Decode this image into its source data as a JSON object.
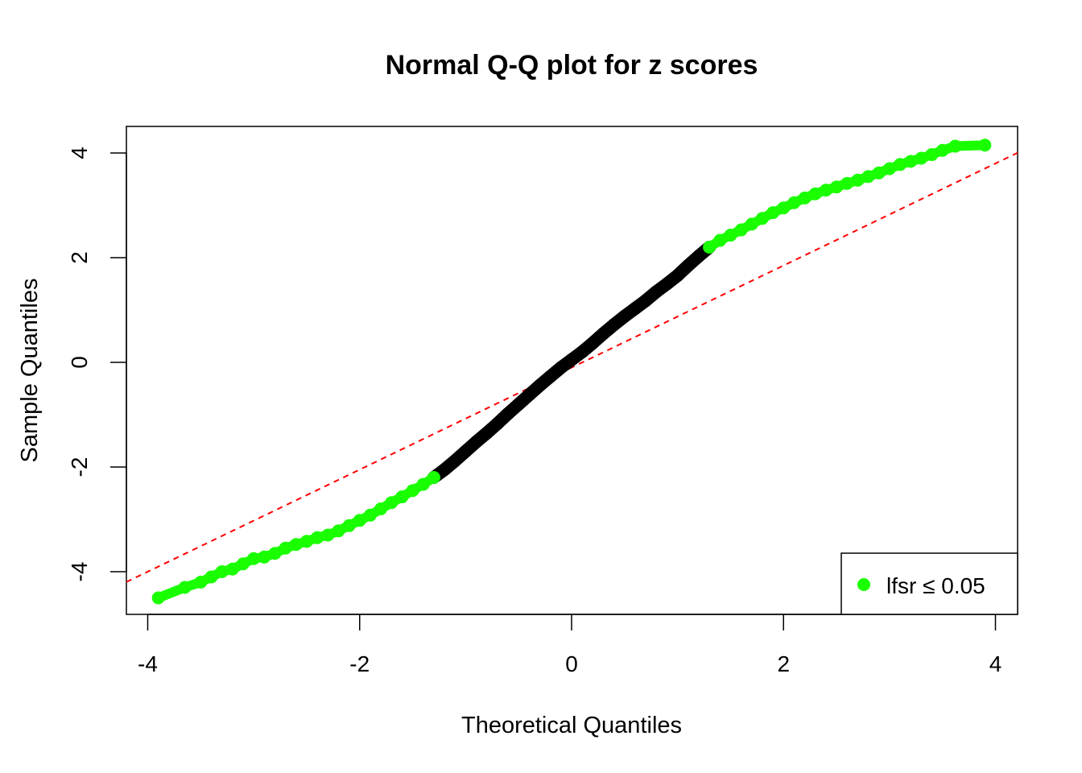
{
  "chart_data": {
    "type": "scatter",
    "title": "Normal Q-Q plot for z scores",
    "xlabel": "Theoretical Quantiles",
    "ylabel": "Sample Quantiles",
    "xlim": [
      -4.2,
      4.2
    ],
    "ylim": [
      -4.8,
      4.5
    ],
    "xticks": [
      -4,
      -2,
      0,
      2,
      4
    ],
    "yticks": [
      -4,
      -2,
      0,
      2,
      4
    ],
    "xtick_labels": [
      "-4",
      "-2",
      "0",
      "2",
      "4"
    ],
    "ytick_labels": [
      "-4",
      "-2",
      "0",
      "2",
      "4"
    ],
    "grid": false,
    "legend": {
      "position": "bottom-right",
      "entries": [
        {
          "label": "lfsr  ≤ 0.05",
          "color": "#1aff00"
        }
      ]
    },
    "reference_line": {
      "slope": 0.975,
      "intercept": -0.1,
      "color": "#ff0000",
      "style": "dashed"
    },
    "series": [
      {
        "name": "lfsr  ≤ 0.05",
        "color": "#1aff00",
        "points": [
          [
            -3.9,
            -4.5
          ],
          [
            -3.65,
            -4.3
          ],
          [
            -3.5,
            -4.2
          ],
          [
            -3.4,
            -4.1
          ],
          [
            -3.3,
            -4.0
          ],
          [
            -3.2,
            -3.95
          ],
          [
            -3.1,
            -3.85
          ],
          [
            -3.0,
            -3.75
          ],
          [
            -2.9,
            -3.72
          ],
          [
            -2.8,
            -3.65
          ],
          [
            -2.7,
            -3.55
          ],
          [
            -2.6,
            -3.48
          ],
          [
            -2.5,
            -3.42
          ],
          [
            -2.4,
            -3.35
          ],
          [
            -2.3,
            -3.3
          ],
          [
            -2.2,
            -3.22
          ],
          [
            -2.1,
            -3.12
          ],
          [
            -2.0,
            -3.02
          ],
          [
            -1.9,
            -2.92
          ],
          [
            -1.8,
            -2.8
          ],
          [
            -1.7,
            -2.68
          ],
          [
            -1.6,
            -2.57
          ],
          [
            -1.5,
            -2.45
          ],
          [
            -1.4,
            -2.33
          ],
          [
            -1.3,
            -2.2
          ],
          [
            1.3,
            2.2
          ],
          [
            1.4,
            2.33
          ],
          [
            1.5,
            2.43
          ],
          [
            1.6,
            2.53
          ],
          [
            1.7,
            2.64
          ],
          [
            1.8,
            2.75
          ],
          [
            1.9,
            2.86
          ],
          [
            2.0,
            2.95
          ],
          [
            2.1,
            3.05
          ],
          [
            2.2,
            3.14
          ],
          [
            2.3,
            3.22
          ],
          [
            2.4,
            3.29
          ],
          [
            2.5,
            3.35
          ],
          [
            2.6,
            3.42
          ],
          [
            2.7,
            3.48
          ],
          [
            2.8,
            3.55
          ],
          [
            2.9,
            3.62
          ],
          [
            3.0,
            3.7
          ],
          [
            3.1,
            3.78
          ],
          [
            3.2,
            3.84
          ],
          [
            3.3,
            3.9
          ],
          [
            3.4,
            3.97
          ],
          [
            3.5,
            4.05
          ],
          [
            3.62,
            4.13
          ],
          [
            3.9,
            4.15
          ]
        ]
      },
      {
        "name": "",
        "color": "#000000",
        "points": [
          [
            -1.3,
            -2.2
          ],
          [
            -1.2,
            -2.05
          ],
          [
            -1.1,
            -1.88
          ],
          [
            -1.0,
            -1.7
          ],
          [
            -0.9,
            -1.52
          ],
          [
            -0.8,
            -1.35
          ],
          [
            -0.7,
            -1.17
          ],
          [
            -0.6,
            -0.98
          ],
          [
            -0.5,
            -0.8
          ],
          [
            -0.4,
            -0.62
          ],
          [
            -0.3,
            -0.44
          ],
          [
            -0.2,
            -0.27
          ],
          [
            -0.1,
            -0.1
          ],
          [
            0.0,
            0.05
          ],
          [
            0.1,
            0.2
          ],
          [
            0.2,
            0.37
          ],
          [
            0.3,
            0.55
          ],
          [
            0.4,
            0.72
          ],
          [
            0.5,
            0.88
          ],
          [
            0.6,
            1.03
          ],
          [
            0.7,
            1.18
          ],
          [
            0.8,
            1.35
          ],
          [
            0.9,
            1.5
          ],
          [
            1.0,
            1.66
          ],
          [
            1.1,
            1.85
          ],
          [
            1.2,
            2.03
          ],
          [
            1.3,
            2.2
          ]
        ]
      }
    ]
  }
}
